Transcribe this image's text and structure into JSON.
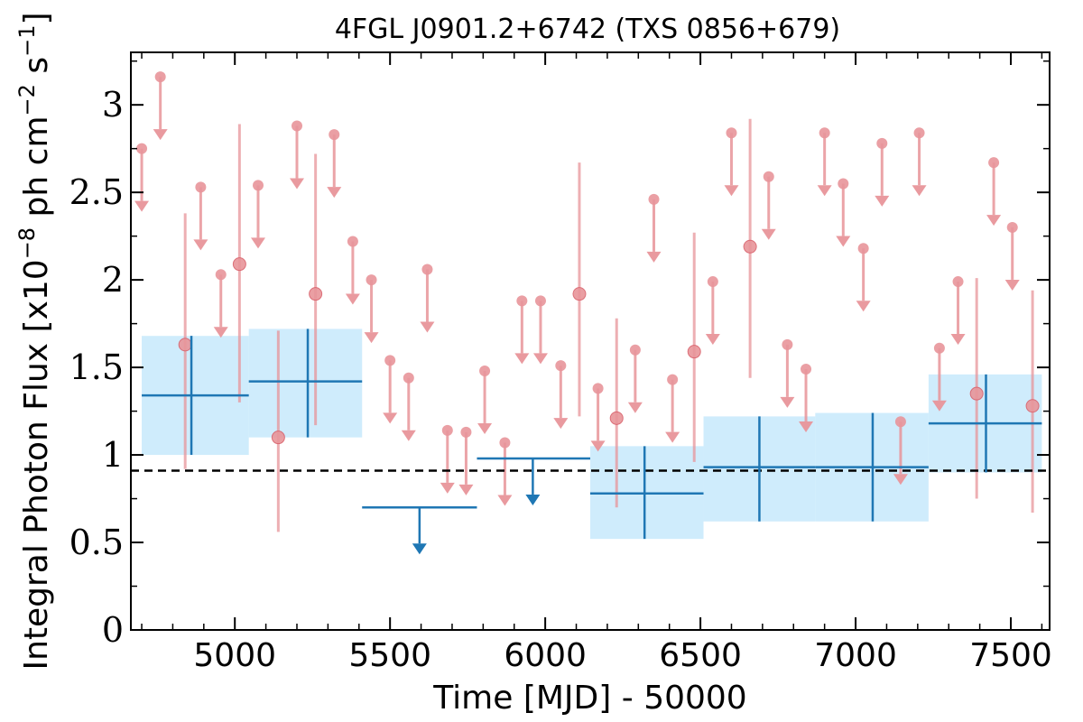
{
  "chart_data": {
    "type": "scatter",
    "title": "4FGL J0901.2+6742 (TXS 0856+679)",
    "xlabel": "Time [MJD] - 50000",
    "ylabel": "Integral Photon Flux [x10",
    "ylabel_exp1": "−8",
    "ylabel_mid": " ph cm",
    "ylabel_exp2": "−2",
    "ylabel_mid2": " s",
    "ylabel_exp3": "−1",
    "ylabel_end": "]",
    "xlim": [
      4665,
      7625
    ],
    "ylim": [
      0,
      3.3
    ],
    "x_ticks": [
      5000,
      5500,
      6000,
      6500,
      7000,
      7500
    ],
    "x_tick_labels": [
      "5000",
      "5500",
      "6000",
      "6500",
      "7000",
      "7500"
    ],
    "y_ticks": [
      0,
      0.5,
      1,
      1.5,
      2,
      2.5,
      3
    ],
    "y_tick_labels": [
      "0",
      "0.5",
      "1",
      "1.5",
      "2",
      "2.5",
      "3"
    ],
    "colors": {
      "fine_bins": "#e8959a",
      "coarse_bins": "#1f77b4",
      "band_fill": "#bfe6fb",
      "mean_line": "#000000"
    },
    "reference_line": {
      "y": 0.91,
      "style": "dashed"
    },
    "series": [
      {
        "points": [
          {
            "x": 4840,
            "y": 1.63,
            "ylo": 0.92,
            "yhi": 2.38
          },
          {
            "x": 5015,
            "y": 2.09,
            "ylo": 1.3,
            "yhi": 2.89
          },
          {
            "x": 5140,
            "y": 1.1,
            "ylo": 0.56,
            "yhi": 1.71
          },
          {
            "x": 5260,
            "y": 1.92,
            "ylo": 1.17,
            "yhi": 2.72
          },
          {
            "x": 6110,
            "y": 1.92,
            "ylo": 1.22,
            "yhi": 2.67
          },
          {
            "x": 6230,
            "y": 1.21,
            "ylo": 0.7,
            "yhi": 1.78
          },
          {
            "x": 6480,
            "y": 1.59,
            "ylo": 0.96,
            "yhi": 2.27
          },
          {
            "x": 6660,
            "y": 2.19,
            "ylo": 1.44,
            "yhi": 2.92
          },
          {
            "x": 7390,
            "y": 1.35,
            "ylo": 0.75,
            "yhi": 2.01
          },
          {
            "x": 7570,
            "y": 1.28,
            "ylo": 0.67,
            "yhi": 1.94
          }
        ],
        "upper_limits": [
          {
            "x": 4700,
            "y": 2.75
          },
          {
            "x": 4760,
            "y": 3.16
          },
          {
            "x": 4890,
            "y": 2.53
          },
          {
            "x": 4955,
            "y": 2.03
          },
          {
            "x": 5075,
            "y": 2.54
          },
          {
            "x": 5200,
            "y": 2.88
          },
          {
            "x": 5320,
            "y": 2.83
          },
          {
            "x": 5380,
            "y": 2.22
          },
          {
            "x": 5440,
            "y": 2.0
          },
          {
            "x": 5500,
            "y": 1.54
          },
          {
            "x": 5560,
            "y": 1.44
          },
          {
            "x": 5620,
            "y": 2.06
          },
          {
            "x": 5685,
            "y": 1.14
          },
          {
            "x": 5745,
            "y": 1.13
          },
          {
            "x": 5805,
            "y": 1.48
          },
          {
            "x": 5870,
            "y": 1.07
          },
          {
            "x": 5925,
            "y": 1.88
          },
          {
            "x": 5985,
            "y": 1.88
          },
          {
            "x": 6050,
            "y": 1.51
          },
          {
            "x": 6170,
            "y": 1.38
          },
          {
            "x": 6290,
            "y": 1.6
          },
          {
            "x": 6350,
            "y": 2.46
          },
          {
            "x": 6410,
            "y": 1.43
          },
          {
            "x": 6540,
            "y": 1.99
          },
          {
            "x": 6600,
            "y": 2.84
          },
          {
            "x": 6720,
            "y": 2.59
          },
          {
            "x": 6780,
            "y": 1.63
          },
          {
            "x": 6840,
            "y": 1.49
          },
          {
            "x": 6900,
            "y": 2.84
          },
          {
            "x": 6960,
            "y": 2.55
          },
          {
            "x": 7025,
            "y": 2.18
          },
          {
            "x": 7085,
            "y": 2.78
          },
          {
            "x": 7145,
            "y": 1.19
          },
          {
            "x": 7205,
            "y": 2.84
          },
          {
            "x": 7270,
            "y": 1.61
          },
          {
            "x": 7330,
            "y": 1.99
          },
          {
            "x": 7445,
            "y": 2.67
          },
          {
            "x": 7505,
            "y": 2.3
          }
        ]
      },
      {
        "points": [
          {
            "x0": 4700,
            "x1": 5045,
            "xc": 4860,
            "y": 1.34,
            "ylo": 1.0,
            "yhi": 1.68
          },
          {
            "x0": 5045,
            "x1": 5410,
            "xc": 5235,
            "y": 1.42,
            "ylo": 1.1,
            "yhi": 1.72
          },
          {
            "x0": 6145,
            "x1": 6510,
            "xc": 6320,
            "y": 0.78,
            "ylo": 0.52,
            "yhi": 1.05
          },
          {
            "x0": 6510,
            "x1": 6870,
            "xc": 6690,
            "y": 0.93,
            "ylo": 0.62,
            "yhi": 1.22
          },
          {
            "x0": 6870,
            "x1": 7235,
            "xc": 7055,
            "y": 0.93,
            "ylo": 0.62,
            "yhi": 1.24
          },
          {
            "x0": 7235,
            "x1": 7600,
            "xc": 7420,
            "y": 1.18,
            "ylo": 0.9,
            "yhi": 1.46
          }
        ],
        "upper_limits": [
          {
            "x0": 5410,
            "x1": 5780,
            "xc": 5595,
            "y": 0.7
          },
          {
            "x0": 5780,
            "x1": 6145,
            "xc": 5960,
            "y": 0.98
          }
        ]
      }
    ]
  }
}
